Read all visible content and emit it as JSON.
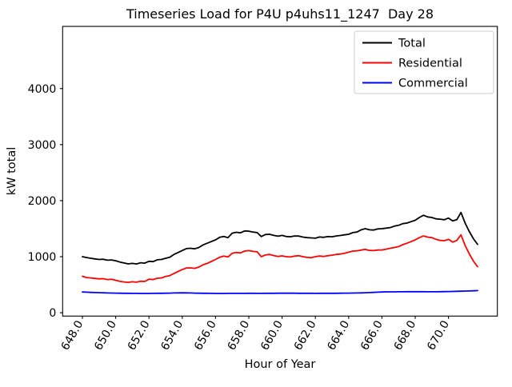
{
  "figure": {
    "background": "#ffffff",
    "spine_color": "#000000"
  },
  "chart_data": {
    "type": "line",
    "title": "Timeseries Load for P4U p4uhs11_1247  Day 28",
    "xlabel": "Hour of Year",
    "ylabel": "kW total",
    "grid": false,
    "xlim": [
      646.8125,
      672.9375
    ],
    "ylim": [
      -60,
      5110
    ],
    "xticks": {
      "values": [
        648,
        650,
        652,
        654,
        656,
        658,
        660,
        662,
        664,
        666,
        668,
        670
      ],
      "labels": [
        "648.0",
        "650.0",
        "652.0",
        "654.0",
        "656.0",
        "658.0",
        "660.0",
        "662.0",
        "664.0",
        "666.0",
        "668.0",
        "670.0"
      ]
    },
    "yticks": {
      "values": [
        0,
        1000,
        2000,
        3000,
        4000
      ],
      "labels": [
        "0",
        "1000",
        "2000",
        "3000",
        "4000"
      ]
    },
    "legend": {
      "position": "upper right",
      "entries": [
        "Total",
        "Residential",
        "Commercial"
      ]
    },
    "x": [
      648.0,
      648.25,
      648.5,
      648.75,
      649.0,
      649.25,
      649.5,
      649.75,
      650.0,
      650.25,
      650.5,
      650.75,
      651.0,
      651.25,
      651.5,
      651.75,
      652.0,
      652.25,
      652.5,
      652.75,
      653.0,
      653.25,
      653.5,
      653.75,
      654.0,
      654.25,
      654.5,
      654.75,
      655.0,
      655.25,
      655.5,
      655.75,
      656.0,
      656.25,
      656.5,
      656.75,
      657.0,
      657.25,
      657.5,
      657.75,
      658.0,
      658.25,
      658.5,
      658.75,
      659.0,
      659.25,
      659.5,
      659.75,
      660.0,
      660.25,
      660.5,
      660.75,
      661.0,
      661.25,
      661.5,
      661.75,
      662.0,
      662.25,
      662.5,
      662.75,
      663.0,
      663.25,
      663.5,
      663.75,
      664.0,
      664.25,
      664.5,
      664.75,
      665.0,
      665.25,
      665.5,
      665.75,
      666.0,
      666.25,
      666.5,
      666.75,
      667.0,
      667.25,
      667.5,
      667.75,
      668.0,
      668.25,
      668.5,
      668.75,
      669.0,
      669.25,
      669.5,
      669.75,
      670.0,
      670.25,
      670.5,
      670.75,
      671.0,
      671.25,
      671.5,
      671.75
    ],
    "series": [
      {
        "name": "Total",
        "color": "#000000",
        "values": [
          1000,
          985,
          972,
          960,
          950,
          955,
          938,
          942,
          928,
          905,
          888,
          872,
          880,
          870,
          892,
          885,
          918,
          912,
          945,
          950,
          972,
          990,
          1040,
          1075,
          1110,
          1145,
          1150,
          1140,
          1165,
          1210,
          1240,
          1270,
          1300,
          1345,
          1360,
          1340,
          1420,
          1435,
          1425,
          1460,
          1455,
          1440,
          1430,
          1360,
          1395,
          1400,
          1380,
          1365,
          1380,
          1360,
          1355,
          1370,
          1368,
          1350,
          1340,
          1335,
          1330,
          1352,
          1345,
          1358,
          1355,
          1370,
          1378,
          1390,
          1400,
          1430,
          1440,
          1480,
          1500,
          1480,
          1475,
          1495,
          1500,
          1510,
          1520,
          1545,
          1560,
          1590,
          1600,
          1625,
          1650,
          1700,
          1740,
          1710,
          1700,
          1675,
          1670,
          1660,
          1690,
          1640,
          1660,
          1790,
          1600,
          1450,
          1320,
          1220
        ]
      },
      {
        "name": "Residential",
        "color": "#ff0000",
        "values": [
          650,
          628,
          620,
          612,
          605,
          608,
          592,
          596,
          580,
          560,
          550,
          542,
          552,
          545,
          562,
          558,
          598,
          592,
          615,
          620,
          648,
          662,
          700,
          735,
          770,
          798,
          800,
          792,
          815,
          855,
          880,
          915,
          950,
          990,
          1010,
          995,
          1060,
          1075,
          1068,
          1100,
          1108,
          1095,
          1088,
          1000,
          1030,
          1040,
          1020,
          1005,
          1015,
          1000,
          995,
          1010,
          1018,
          1000,
          988,
          982,
          1000,
          1012,
          1005,
          1018,
          1028,
          1040,
          1048,
          1062,
          1080,
          1100,
          1105,
          1118,
          1130,
          1112,
          1108,
          1118,
          1120,
          1135,
          1150,
          1165,
          1180,
          1215,
          1240,
          1268,
          1300,
          1340,
          1370,
          1350,
          1340,
          1310,
          1290,
          1285,
          1310,
          1260,
          1290,
          1390,
          1200,
          1050,
          920,
          820
        ]
      },
      {
        "name": "Commercial",
        "color": "#0000ff",
        "values": [
          370,
          366,
          363,
          360,
          358,
          355,
          353,
          351,
          350,
          348,
          347,
          346,
          345,
          345,
          344,
          344,
          344,
          345,
          346,
          347,
          348,
          350,
          352,
          354,
          355,
          354,
          352,
          350,
          348,
          347,
          346,
          345,
          344,
          344,
          344,
          345,
          345,
          345,
          345,
          345,
          346,
          346,
          345,
          345,
          346,
          347,
          347,
          348,
          348,
          348,
          348,
          348,
          347,
          347,
          346,
          346,
          345,
          346,
          346,
          347,
          347,
          347,
          348,
          349,
          350,
          351,
          352,
          354,
          356,
          360,
          363,
          367,
          370,
          372,
          373,
          373,
          374,
          374,
          375,
          375,
          375,
          375,
          375,
          374,
          374,
          374,
          375,
          376,
          378,
          380,
          382,
          384,
          386,
          388,
          391,
          395
        ]
      }
    ]
  }
}
